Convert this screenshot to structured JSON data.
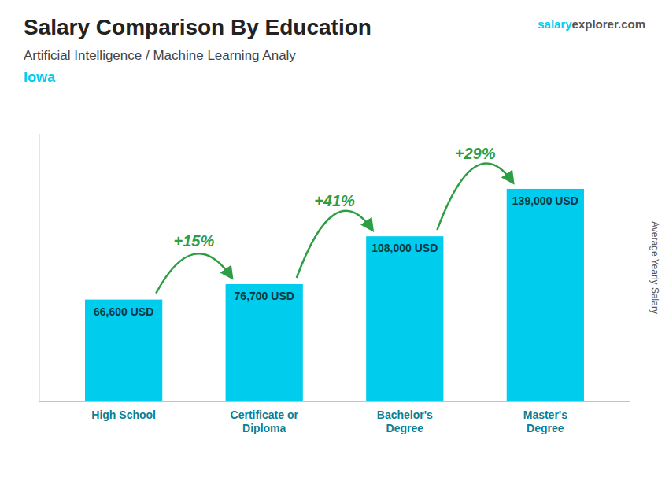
{
  "chart_data": {
    "type": "bar",
    "title": "Salary Comparison By Education",
    "subtitle": "Artificial Intelligence / Machine Learning Analy",
    "location": "Iowa",
    "watermark": [
      "salary",
      "explorer",
      ".com"
    ],
    "ylabel": "Average Yearly Salary",
    "categories": [
      "High School",
      "Certificate or\nDiploma",
      "Bachelor's\nDegree",
      "Master's\nDegree"
    ],
    "values": [
      66600,
      76700,
      108000,
      139000
    ],
    "value_labels": [
      "66,600 USD",
      "76,700 USD",
      "108,000 USD",
      "139,000 USD"
    ],
    "annotations": [
      "+15%",
      "+41%",
      "+29%"
    ],
    "color": "#00CCEE",
    "ylim": [
      0,
      175000
    ],
    "yticks": [],
    "tick_labels": "x",
    "data_labels": true,
    "grid": false
  }
}
